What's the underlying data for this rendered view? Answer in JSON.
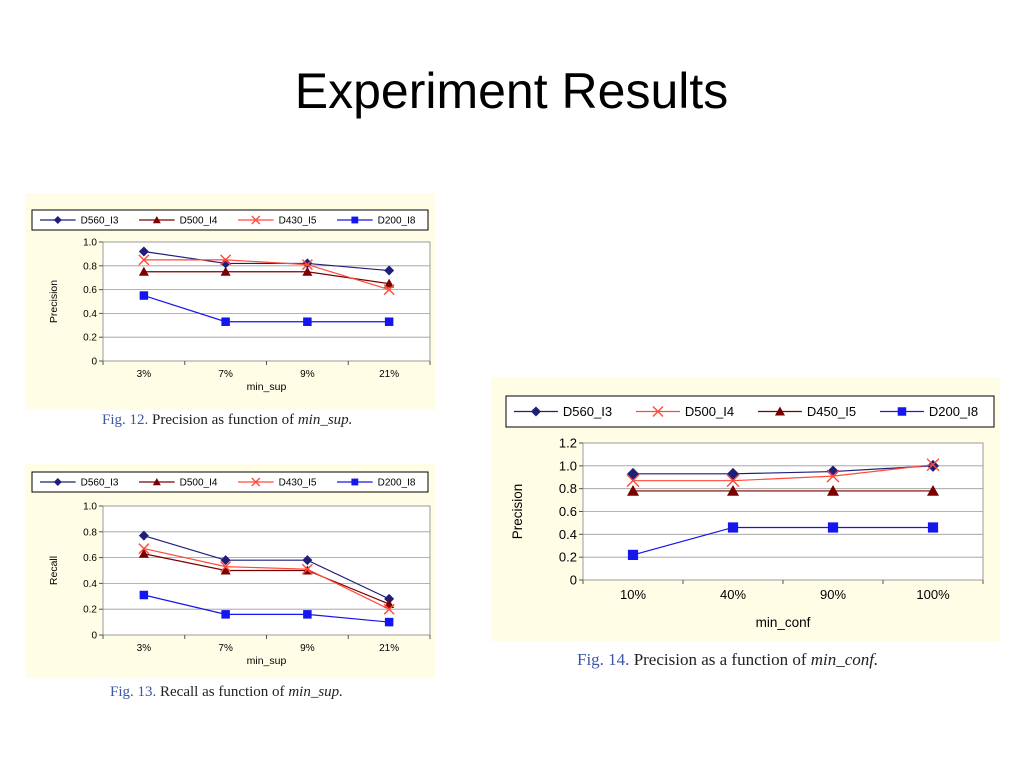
{
  "slide": {
    "title": "Experiment Results"
  },
  "captions": [
    {
      "fig": "Fig. 12.",
      "text": "Precision as function of",
      "term": "min_sup."
    },
    {
      "fig": "Fig. 13.",
      "text": "Recall as function of",
      "term": "min_sup."
    },
    {
      "fig": "Fig. 14.",
      "text": "Precision as a function of",
      "term": "min_conf."
    }
  ],
  "colors": {
    "D560": "#1f1f7a",
    "D500": "#7a0000",
    "D430": "#ff4a3a",
    "D200": "#1515ee"
  },
  "chart_data": [
    {
      "type": "line",
      "title": "",
      "xlabel": "min_sup",
      "ylabel": "Precision",
      "categories": [
        "3%",
        "7%",
        "9%",
        "21%"
      ],
      "ylim": [
        0,
        1.0
      ],
      "yticks": [
        "0",
        "0.2",
        "0.4",
        "0.6",
        "0.8",
        "1.0"
      ],
      "grid": true,
      "legend": "top",
      "series": [
        {
          "name": "D560_I3",
          "values": [
            0.92,
            0.82,
            0.82,
            0.76
          ],
          "marker": "diamond",
          "color": "#1f1f7a"
        },
        {
          "name": "D500_I4",
          "values": [
            0.75,
            0.75,
            0.75,
            0.65
          ],
          "marker": "triangle",
          "color": "#7a0000"
        },
        {
          "name": "D430_I5",
          "values": [
            0.85,
            0.85,
            0.81,
            0.6
          ],
          "marker": "x",
          "color": "#ff4a3a"
        },
        {
          "name": "D200_I8",
          "values": [
            0.55,
            0.33,
            0.33,
            0.33
          ],
          "marker": "square",
          "color": "#1515ee"
        }
      ]
    },
    {
      "type": "line",
      "title": "",
      "xlabel": "min_sup",
      "ylabel": "Recall",
      "categories": [
        "3%",
        "7%",
        "9%",
        "21%"
      ],
      "ylim": [
        0,
        1.0
      ],
      "yticks": [
        "0",
        "0.2",
        "0.4",
        "0.6",
        "0.8",
        "1.0"
      ],
      "grid": true,
      "legend": "top",
      "series": [
        {
          "name": "D560_I3",
          "values": [
            0.77,
            0.58,
            0.58,
            0.28
          ],
          "marker": "diamond",
          "color": "#1f1f7a"
        },
        {
          "name": "D500_I4",
          "values": [
            0.63,
            0.5,
            0.5,
            0.24
          ],
          "marker": "triangle",
          "color": "#7a0000"
        },
        {
          "name": "D430_I5",
          "values": [
            0.67,
            0.53,
            0.51,
            0.2
          ],
          "marker": "x",
          "color": "#ff4a3a"
        },
        {
          "name": "D200_I8",
          "values": [
            0.31,
            0.16,
            0.16,
            0.1
          ],
          "marker": "square",
          "color": "#1515ee"
        }
      ]
    },
    {
      "type": "line",
      "title": "",
      "xlabel": "min_conf",
      "ylabel": "Precision",
      "categories": [
        "10%",
        "40%",
        "90%",
        "100%"
      ],
      "ylim": [
        0,
        1.2
      ],
      "yticks": [
        "0",
        "0.2",
        "0.4",
        "0.6",
        "0.8",
        "1.0",
        "1.2"
      ],
      "grid": true,
      "legend": "top",
      "series": [
        {
          "name": "D560_I3",
          "values": [
            0.93,
            0.93,
            0.95,
            1.0
          ],
          "marker": "diamond",
          "color": "#1f1f7a"
        },
        {
          "name": "D500_I4",
          "values": [
            0.87,
            0.87,
            0.91,
            1.01
          ],
          "marker": "x",
          "color": "#ff4a3a"
        },
        {
          "name": "D450_I5",
          "values": [
            0.78,
            0.78,
            0.78,
            0.78
          ],
          "marker": "triangle",
          "color": "#7a0000"
        },
        {
          "name": "D200_I8",
          "values": [
            0.22,
            0.46,
            0.46,
            0.46
          ],
          "marker": "square",
          "color": "#1515ee"
        }
      ]
    }
  ]
}
